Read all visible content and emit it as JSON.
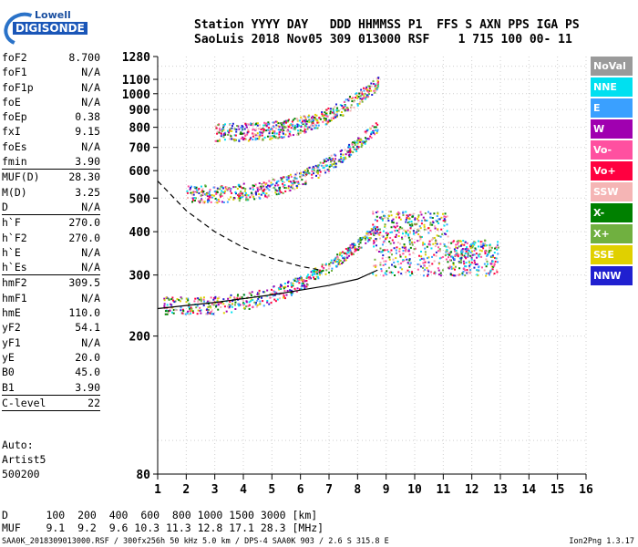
{
  "header": {
    "line1": "Station YYYY DAY   DDD HHMMSS P1  FFS S AXN PPS IGA PS",
    "line2": "SaoLuis 2018 Nov05 309 013000 RSF    1 715 100 00- 11"
  },
  "logo": {
    "line1": "Lowell",
    "line2": "DIGISONDE"
  },
  "params": [
    {
      "name": "foF2",
      "value": "8.700"
    },
    {
      "name": "foF1",
      "value": "N/A"
    },
    {
      "name": "foF1p",
      "value": "N/A"
    },
    {
      "name": "foE",
      "value": "N/A"
    },
    {
      "name": "foEp",
      "value": "0.38"
    },
    {
      "name": "fxI",
      "value": "9.15"
    },
    {
      "name": "foEs",
      "value": "N/A"
    },
    {
      "name": "fmin",
      "value": "3.90",
      "sep": true
    },
    {
      "name": "MUF(D)",
      "value": "28.30"
    },
    {
      "name": "M(D)",
      "value": "3.25"
    },
    {
      "name": "D",
      "value": "N/A",
      "sep": true
    },
    {
      "name": "h`F",
      "value": "270.0"
    },
    {
      "name": "h`F2",
      "value": "270.0"
    },
    {
      "name": "h`E",
      "value": "N/A"
    },
    {
      "name": "h`Es",
      "value": "N/A",
      "sep": true
    },
    {
      "name": "hmF2",
      "value": "309.5"
    },
    {
      "name": "hmF1",
      "value": "N/A"
    },
    {
      "name": "hmE",
      "value": "110.0"
    },
    {
      "name": "yF2",
      "value": "54.1"
    },
    {
      "name": "yF1",
      "value": "N/A"
    },
    {
      "name": "yE",
      "value": "20.0"
    },
    {
      "name": "B0",
      "value": "45.0"
    },
    {
      "name": "B1",
      "value": "3.90",
      "sep": true
    },
    {
      "name": "C-level",
      "value": "22",
      "sep": true
    }
  ],
  "auto": [
    "Auto:",
    "Artist5",
    "500200"
  ],
  "footer": {
    "d_row": "D      100  200  400  600  800 1000 1500 3000 [km]",
    "muf_row": "MUF    9.1  9.2  9.6 10.3 11.3 12.8 17.1 28.3 [MHz]",
    "file_line": "SAA0K_2018309013000.RSF / 300fx256h 50 kHz 5.0 km / DPS-4 SAA0K 903 / 2.6 S 315.8 E",
    "version": "Ion2Png 1.3.17"
  },
  "legend": [
    {
      "label": "NoVal",
      "color": "#9a9a9a"
    },
    {
      "label": "NNE",
      "color": "#00e0f0"
    },
    {
      "label": "E",
      "color": "#3aa0ff"
    },
    {
      "label": "W",
      "color": "#a000b0"
    },
    {
      "label": "Vo-",
      "color": "#ff50a0"
    },
    {
      "label": "Vo+",
      "color": "#ff0040"
    },
    {
      "label": "SSW",
      "color": "#f5b5b5"
    },
    {
      "label": "X-",
      "color": "#008000"
    },
    {
      "label": "X+",
      "color": "#70b040"
    },
    {
      "label": "SSE",
      "color": "#e0d000"
    },
    {
      "label": "NNW",
      "color": "#2020d0"
    }
  ],
  "chart_data": {
    "type": "scatter",
    "title": "",
    "xlabel": "",
    "ylabel": "",
    "x_ticks": [
      1,
      2,
      3,
      4,
      5,
      6,
      7,
      8,
      9,
      10,
      11,
      12,
      13,
      14,
      15,
      16
    ],
    "y_ticks": [
      80,
      200,
      300,
      400,
      500,
      600,
      700,
      800,
      900,
      1000,
      1100,
      1280
    ],
    "xlim": [
      1,
      16
    ],
    "ylim": [
      80,
      1280
    ],
    "y_scale": "log",
    "grid": true,
    "legend_position": "right",
    "traces": [
      {
        "name": "F-trace O",
        "freq_start": 1.2,
        "freq_end": 8.7,
        "h_start": 240,
        "h_end": 410
      },
      {
        "name": "F-trace 2nd hop",
        "freq_start": 2.0,
        "freq_end": 8.7,
        "h_start": 505,
        "h_end": 800
      },
      {
        "name": "F-trace 3rd hop",
        "freq_start": 3.0,
        "freq_end": 8.7,
        "h_start": 760,
        "h_end": 1060
      },
      {
        "name": "X spread",
        "freq_start": 8.5,
        "freq_end": 12.9,
        "h_start": 280,
        "h_end": 480
      }
    ],
    "profile_solid": [
      [
        1.0,
        240
      ],
      [
        3.0,
        250
      ],
      [
        5.0,
        263
      ],
      [
        7.0,
        280
      ],
      [
        8.0,
        292
      ],
      [
        8.7,
        310
      ]
    ],
    "profile_dashed": [
      [
        1.0,
        560
      ],
      [
        2.0,
        460
      ],
      [
        3.0,
        400
      ],
      [
        4.0,
        360
      ],
      [
        5.0,
        335
      ],
      [
        6.0,
        318
      ],
      [
        6.7,
        310
      ]
    ]
  }
}
